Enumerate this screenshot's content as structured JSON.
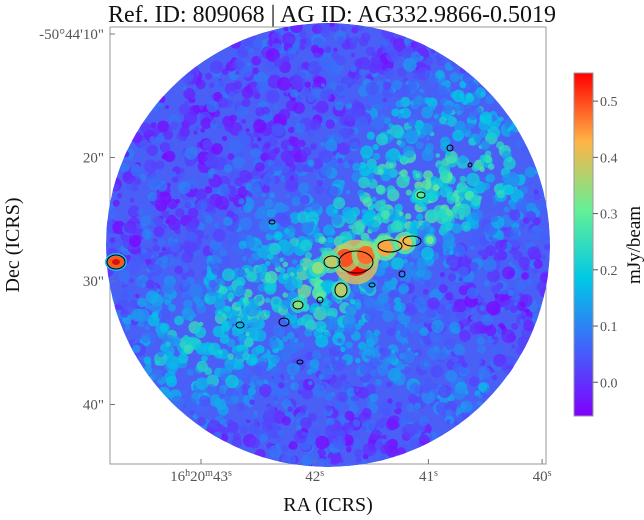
{
  "chart_data": {
    "type": "heatmap",
    "title": "Ref. ID: 809068 | AG ID: AG332.9866-0.5019",
    "xlabel": "RA (ICRS)",
    "ylabel": "Dec (ICRS)",
    "x_ticks": [
      {
        "label_main": "16",
        "sup_h": "h",
        "label_mid": "20",
        "sup_m": "m",
        "label_sec": "43",
        "sup_s": "s",
        "value_sec": 43
      },
      {
        "label_main": "",
        "sup_h": "",
        "label_mid": "",
        "sup_m": "",
        "label_sec": "42",
        "sup_s": "s",
        "value_sec": 42
      },
      {
        "label_main": "",
        "sup_h": "",
        "label_mid": "",
        "sup_m": "",
        "label_sec": "41",
        "sup_s": "s",
        "value_sec": 41
      },
      {
        "label_main": "",
        "sup_h": "",
        "label_mid": "",
        "sup_m": "",
        "label_sec": "40",
        "sup_s": "s",
        "value_sec": 40
      }
    ],
    "y_ticks": [
      {
        "label": "-50°44'10\"",
        "value_arcsec": 10
      },
      {
        "label": "20\"",
        "value_arcsec": 20
      },
      {
        "label": "30\"",
        "value_arcsec": 30
      },
      {
        "label": "40\"",
        "value_arcsec": 40
      }
    ],
    "colorbar": {
      "label": "mJy/beam",
      "colormap": "rainbow",
      "range": [
        -0.06,
        0.55
      ],
      "ticks": [
        {
          "label": "0.0",
          "value": 0.0
        },
        {
          "label": "0.1",
          "value": 0.1
        },
        {
          "label": "0.2",
          "value": 0.2
        },
        {
          "label": "0.3",
          "value": 0.3
        },
        {
          "label": "0.4",
          "value": 0.4
        },
        {
          "label": "0.5",
          "value": 0.5
        }
      ]
    },
    "contours": "black",
    "colors": {
      "low": "#6a1cf5",
      "mid": "#2f8ff0",
      "high": "#ff3010",
      "outside": "#ffffff"
    }
  }
}
